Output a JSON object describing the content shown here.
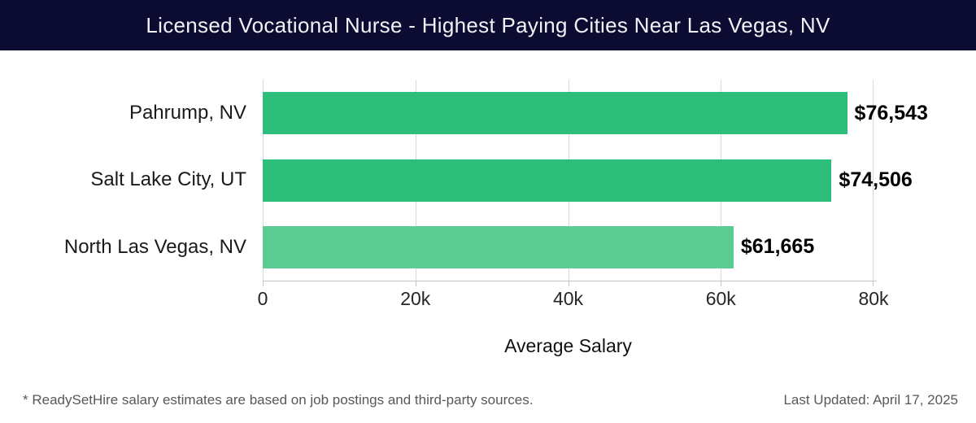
{
  "header": {
    "title": "Licensed Vocational Nurse - Highest Paying Cities Near Las Vegas, NV"
  },
  "colors": {
    "header_bg": "#0c0b31",
    "header_text": "#f1f1f6",
    "bar_green": "#2ebe7c",
    "bar_green_light": "#5bca93",
    "gridline": "#d8d8d8",
    "axis_line": "#c4c4c4",
    "value_label": "#000000",
    "category_label": "#1a1a1a",
    "tick_label": "#262626",
    "footer_text": "#58585a"
  },
  "chart_data": {
    "type": "bar",
    "orientation": "horizontal",
    "title": "Licensed Vocational Nurse - Highest Paying Cities Near Las Vegas, NV",
    "categories": [
      "Pahrump, NV",
      "Salt Lake City, UT",
      "North Las Vegas, NV"
    ],
    "values": [
      76543,
      74506,
      61665
    ],
    "value_labels": [
      "$76,543",
      "$74,506",
      "$61,665"
    ],
    "bar_colors": [
      "#2ebe7c",
      "#2ebe7c",
      "#5bca93"
    ],
    "xlabel": "Average Salary",
    "ylabel": "",
    "xlim": [
      0,
      80000
    ],
    "xticks": [
      0,
      20000,
      40000,
      60000,
      80000
    ],
    "xtick_labels": [
      "0",
      "20k",
      "40k",
      "60k",
      "80k"
    ],
    "grid": "vertical gridlines at each x tick",
    "legend": "none"
  },
  "footer": {
    "note": "* ReadySetHire salary estimates are based on job postings and third-party sources.",
    "last_updated": "Last Updated: April 17, 2025"
  }
}
